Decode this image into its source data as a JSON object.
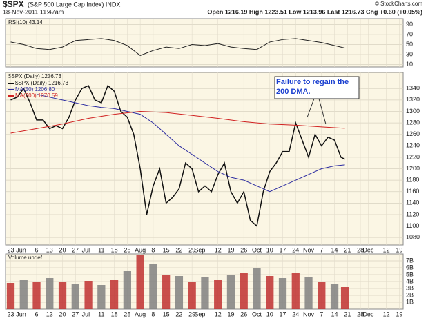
{
  "header": {
    "symbol": "$SPX",
    "title": "(S&P 500 Large Cap Index) INDX",
    "date": "18-Nov-2011 11:47am",
    "quote": "Open 1216.19 High 1223.51 Low 1213.96 Last 1216.73 Chg +0.60 (+0.05%)",
    "credit": "© StockCharts.com"
  },
  "chart_data": [
    {
      "type": "line",
      "title": "RSI(10) 43.14",
      "xlim": [
        -0.4,
        30.3
      ],
      "ylim": [
        5,
        102
      ],
      "yticks": [
        10,
        30,
        50,
        70,
        90
      ],
      "grid": true,
      "series": [
        {
          "name": "RSI(10)",
          "color": "#222222",
          "x": [
            0,
            1,
            2,
            3,
            4,
            5,
            6,
            7,
            8,
            9,
            10,
            11,
            12,
            13,
            14,
            15,
            16,
            17,
            18,
            19,
            20,
            21,
            22,
            23,
            24,
            25,
            25.8
          ],
          "values": [
            55,
            50,
            42,
            40,
            45,
            58,
            60,
            62,
            58,
            48,
            28,
            38,
            45,
            42,
            50,
            48,
            52,
            45,
            42,
            40,
            55,
            60,
            62,
            58,
            54,
            48,
            43.14
          ]
        }
      ]
    },
    {
      "type": "line",
      "title": "$SPX (Daily) 1216.73",
      "xlim": [
        -0.4,
        30.3
      ],
      "ylim": [
        1067,
        1368
      ],
      "yticks": [
        1080,
        1100,
        1120,
        1140,
        1160,
        1180,
        1200,
        1220,
        1240,
        1260,
        1280,
        1300,
        1320,
        1340
      ],
      "grid": true,
      "annotation": "Failure to regain the 200 DMA.",
      "xticks": [
        {
          "value": 0,
          "label": "23"
        },
        {
          "value": 0.8,
          "label": "Jun"
        },
        {
          "value": 2,
          "label": "6"
        },
        {
          "value": 3,
          "label": "13"
        },
        {
          "value": 4,
          "label": "20"
        },
        {
          "value": 5,
          "label": "27"
        },
        {
          "value": 5.8,
          "label": "Jul"
        },
        {
          "value": 7,
          "label": "11"
        },
        {
          "value": 8,
          "label": "18"
        },
        {
          "value": 9,
          "label": "25"
        },
        {
          "value": 10,
          "label": "Aug"
        },
        {
          "value": 11,
          "label": "8"
        },
        {
          "value": 12,
          "label": "15"
        },
        {
          "value": 13,
          "label": "22"
        },
        {
          "value": 14,
          "label": "29"
        },
        {
          "value": 14.6,
          "label": "Sep"
        },
        {
          "value": 16,
          "label": "12"
        },
        {
          "value": 17,
          "label": "19"
        },
        {
          "value": 18,
          "label": "26"
        },
        {
          "value": 19,
          "label": "Oct"
        },
        {
          "value": 20,
          "label": "10"
        },
        {
          "value": 21,
          "label": "17"
        },
        {
          "value": 22,
          "label": "24"
        },
        {
          "value": 23,
          "label": "Nov"
        },
        {
          "value": 24,
          "label": "7"
        },
        {
          "value": 25,
          "label": "14"
        },
        {
          "value": 26,
          "label": "21"
        },
        {
          "value": 27,
          "label": "28"
        },
        {
          "value": 27.6,
          "label": "Dec"
        },
        {
          "value": 29,
          "label": "12"
        },
        {
          "value": 30,
          "label": "19"
        }
      ],
      "series": [
        {
          "name": "$SPX (Daily) 1216.73",
          "color": "#111111",
          "x": [
            0,
            0.5,
            1,
            1.5,
            2,
            2.5,
            3,
            3.5,
            4,
            4.5,
            5,
            5.5,
            6,
            6.5,
            7,
            7.5,
            8,
            8.5,
            9,
            9.5,
            10,
            10.5,
            11,
            11.5,
            12,
            12.5,
            13,
            13.5,
            14,
            14.5,
            15,
            15.5,
            16,
            16.5,
            17,
            17.5,
            18,
            18.5,
            19,
            19.5,
            20,
            20.5,
            21,
            21.5,
            22,
            22.5,
            23,
            23.5,
            24,
            24.5,
            25,
            25.5,
            25.8
          ],
          "values": [
            1320,
            1325,
            1340,
            1315,
            1285,
            1285,
            1270,
            1275,
            1270,
            1290,
            1320,
            1340,
            1345,
            1320,
            1315,
            1345,
            1335,
            1300,
            1290,
            1260,
            1200,
            1120,
            1170,
            1200,
            1140,
            1150,
            1165,
            1210,
            1200,
            1160,
            1170,
            1160,
            1190,
            1210,
            1160,
            1140,
            1160,
            1110,
            1100,
            1160,
            1195,
            1210,
            1230,
            1230,
            1280,
            1250,
            1220,
            1260,
            1240,
            1255,
            1250,
            1220,
            1216.73
          ]
        },
        {
          "name": "MA(50) 1206.80",
          "color": "#2a2aa0",
          "x": [
            2,
            3,
            4,
            5,
            6,
            7,
            8,
            9,
            10,
            11,
            12,
            13,
            14,
            15,
            16,
            17,
            18,
            19,
            20,
            21,
            22,
            23,
            24,
            25,
            25.8
          ],
          "values": [
            1330,
            1325,
            1320,
            1315,
            1310,
            1307,
            1305,
            1300,
            1295,
            1280,
            1260,
            1240,
            1225,
            1210,
            1195,
            1185,
            1180,
            1170,
            1160,
            1170,
            1180,
            1190,
            1200,
            1205,
            1206.8
          ]
        },
        {
          "name": "MA(200) 1270.59",
          "color": "#d02020",
          "x": [
            0,
            2,
            4,
            6,
            8,
            10,
            12,
            14,
            16,
            18,
            20,
            22,
            24,
            25.8
          ],
          "values": [
            1262,
            1270,
            1278,
            1288,
            1295,
            1300,
            1298,
            1293,
            1288,
            1282,
            1278,
            1276,
            1273,
            1270.59
          ]
        }
      ]
    },
    {
      "type": "bar",
      "title": "Volume undef",
      "xlim": [
        -0.4,
        30.3
      ],
      "ylim": [
        0,
        8
      ],
      "grid": true,
      "yticks": [
        {
          "value": 1,
          "label": "1B"
        },
        {
          "value": 2,
          "label": "2B"
        },
        {
          "value": 3,
          "label": "3B"
        },
        {
          "value": 4,
          "label": "4B"
        },
        {
          "value": 5,
          "label": "5B"
        },
        {
          "value": 6,
          "label": "6B"
        },
        {
          "value": 7,
          "label": "7B"
        }
      ],
      "series": [
        {
          "name": "Volume",
          "color": "#c03030",
          "x": [
            0,
            1,
            2,
            3,
            4,
            5,
            6,
            7,
            8,
            9,
            10,
            11,
            12,
            13,
            14,
            15,
            16,
            17,
            18,
            19,
            20,
            21,
            22,
            23,
            24,
            25,
            25.8
          ],
          "values": [
            3.8,
            4.2,
            3.9,
            4.5,
            4.0,
            3.6,
            4.1,
            3.5,
            4.2,
            5.5,
            7.8,
            6.5,
            5.0,
            4.8,
            4.0,
            4.6,
            4.2,
            5.0,
            5.2,
            6.0,
            4.8,
            4.5,
            5.2,
            4.6,
            4.0,
            3.6,
            3.2
          ]
        }
      ]
    }
  ]
}
